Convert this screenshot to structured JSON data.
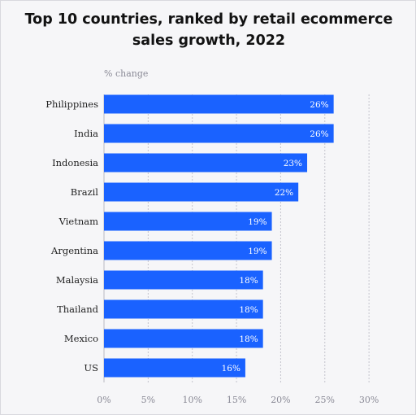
{
  "chart_data": {
    "type": "bar",
    "orientation": "horizontal",
    "title_lines": [
      "Top 10 countries, ranked by retail ecommerce",
      "sales growth, 2022"
    ],
    "unit_label": "% change",
    "categories": [
      "Philippines",
      "India",
      "Indonesia",
      "Brazil",
      "Vietnam",
      "Argentina",
      "Malaysia",
      "Thailand",
      "Mexico",
      "US"
    ],
    "values": [
      26,
      26,
      23,
      22,
      19,
      19,
      18,
      18,
      18,
      16
    ],
    "data_labels": [
      "26%",
      "26%",
      "23%",
      "22%",
      "19%",
      "19%",
      "18%",
      "18%",
      "18%",
      "16%"
    ],
    "x_ticks": [
      0,
      5,
      10,
      15,
      20,
      25,
      30
    ],
    "x_tick_labels": [
      "0%",
      "5%",
      "10%",
      "15%",
      "20%",
      "25%",
      "30%"
    ],
    "xlim": [
      0,
      31
    ],
    "grid": "vertical dashed",
    "bar_color": "#1a62ff",
    "text_color": "#222222",
    "muted_color": "#8a8a96",
    "background": "#f6f6f8"
  }
}
